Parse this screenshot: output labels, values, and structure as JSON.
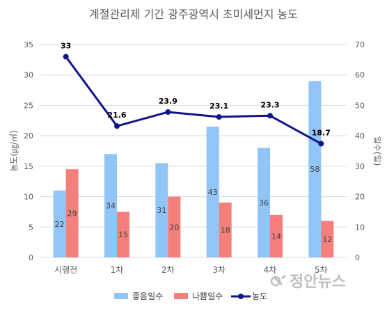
{
  "chart_data": {
    "type": "bar",
    "title": "계절관리제 기간 광주광역시 초미세먼지 농도",
    "categories": [
      "시행전",
      "1차",
      "2차",
      "3차",
      "4차",
      "5차"
    ],
    "series": [
      {
        "name": "좋음일수",
        "type": "bar",
        "axis": "right",
        "color": "#92c5f7",
        "values": [
          22,
          34,
          31,
          43,
          36,
          58
        ]
      },
      {
        "name": "나쁨일수",
        "type": "bar",
        "axis": "right",
        "color": "#f47f7b",
        "values": [
          29,
          15,
          20,
          18,
          14,
          12
        ]
      },
      {
        "name": "농도",
        "type": "line",
        "axis": "left",
        "color": "#10148a",
        "values": [
          33,
          21.6,
          23.9,
          23.1,
          23.3,
          18.7
        ]
      }
    ],
    "ylabel": "농도(㎍/㎥)",
    "y2label": "일수(일)",
    "ylim": [
      0,
      35
    ],
    "y2lim": [
      0,
      70
    ],
    "yticks": [
      "0",
      "5",
      "10",
      "15",
      "20",
      "25",
      "30",
      "35"
    ],
    "y2ticks": [
      "0",
      "10",
      "20",
      "30",
      "40",
      "50",
      "60",
      "70"
    ],
    "grid": true,
    "legend_position": "bottom"
  },
  "watermark": "정안뉴스"
}
